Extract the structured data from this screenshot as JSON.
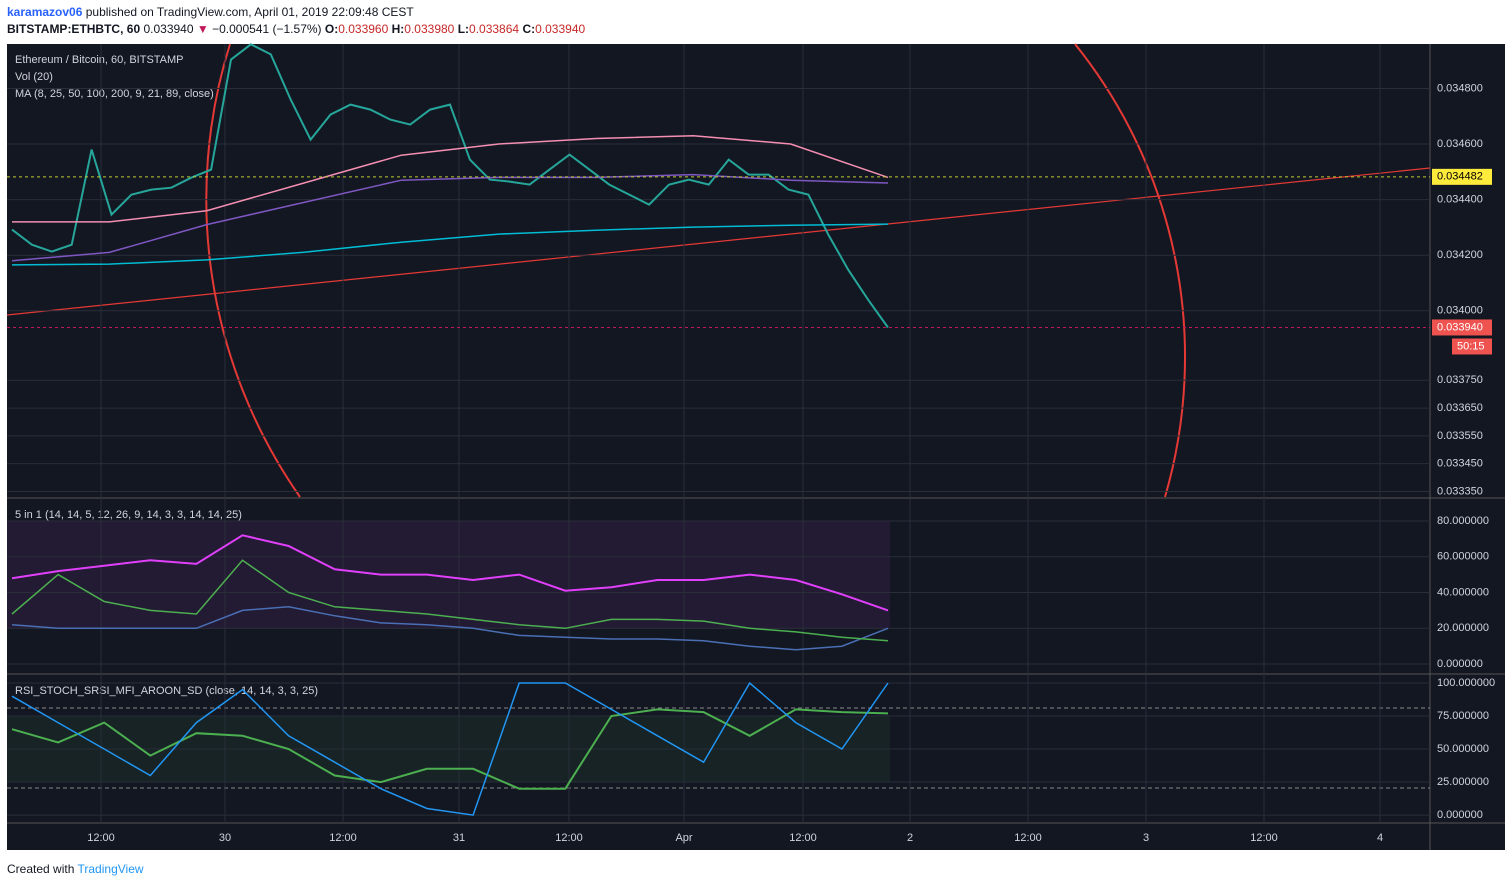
{
  "header": {
    "author": "karamazov06",
    "published": "published on TradingView.com, April 01, 2019 22:09:48 CEST",
    "symbol": "BITSTAMP:ETHBTC, 60",
    "last": "0.033940",
    "arrow": "▼",
    "change": "−0.000541 (−1.57%)",
    "open_label": "O:",
    "open": "0.033960",
    "high_label": "H:",
    "high": "0.033980",
    "low_label": "L:",
    "low": "0.033864",
    "close_label": "C:",
    "close": "0.033940"
  },
  "main": {
    "title": "Ethereum / Bitcoin, 60, BITSTAMP",
    "volume": "Vol (20)",
    "ma": "MA (8, 25, 50, 100, 200, 9, 21, 89, close)",
    "ylim": [
      0.03333,
      0.03496
    ],
    "yticks": [
      {
        "value": 0.0348,
        "label": "0.034800"
      },
      {
        "value": 0.0346,
        "label": "0.034600"
      },
      {
        "value": 0.0344,
        "label": "0.034400"
      },
      {
        "value": 0.0342,
        "label": "0.034200"
      },
      {
        "value": 0.034,
        "label": "0.034000"
      },
      {
        "value": 0.03375,
        "label": "0.033750"
      },
      {
        "value": 0.03365,
        "label": "0.033650"
      },
      {
        "value": 0.03355,
        "label": "0.033550"
      },
      {
        "value": 0.03345,
        "label": "0.033450"
      },
      {
        "value": 0.03335,
        "label": "0.033350"
      }
    ],
    "level": 0.034482,
    "last": {
      "value": 0.03394,
      "label": "0.033940"
    },
    "countdown": "50:15",
    "series": [
      {
        "color": "#26a69a",
        "values": [
          0.034292,
          0.034238,
          0.034213,
          0.034238,
          0.03458,
          0.034346,
          0.034418,
          0.034436,
          0.034443,
          0.034479,
          0.034508,
          0.034904,
          0.034959,
          0.034923,
          0.03476,
          0.034616,
          0.034706,
          0.034742,
          0.034724,
          0.034688,
          0.03467,
          0.034724,
          0.034742,
          0.034544,
          0.034472,
          0.034465,
          0.034454,
          0.034508,
          0.034562,
          0.034508,
          0.034454,
          0.034418,
          0.034382,
          0.034454,
          0.034472,
          0.034454,
          0.034544,
          0.03449,
          0.03449,
          0.034436,
          0.034418,
          0.034274,
          0.034148,
          0.03404,
          0.03394
        ]
      },
      {
        "color": "#00bcd4",
        "values": [
          0.034165,
          0.034168,
          0.034183,
          0.034211,
          0.034247,
          0.034276,
          0.03429,
          0.034301,
          0.034308,
          0.034312
        ]
      },
      {
        "color": "#7e57c2",
        "values": [
          0.03418,
          0.03421,
          0.03431,
          0.03439,
          0.03447,
          0.03448,
          0.03448,
          0.03449,
          0.03447,
          0.03446
        ]
      },
      {
        "color": "#f48fb1",
        "values": [
          0.03432,
          0.03432,
          0.03436,
          0.03446,
          0.03456,
          0.0346,
          0.03462,
          0.03463,
          0.0346,
          0.03448
        ]
      }
    ]
  },
  "pane2": {
    "title": "5 in 1 (14, 14, 5, 12, 26, 9, 14, 3, 3, 14, 14, 25)",
    "ylim": [
      -5,
      92.3
    ],
    "yticks": [
      {
        "value": 80,
        "label": "80.000000"
      },
      {
        "value": 60,
        "label": "60.000000"
      },
      {
        "value": 40,
        "label": "40.000000"
      },
      {
        "value": 20,
        "label": "20.000000"
      },
      {
        "value": 0,
        "label": "0.000000"
      }
    ],
    "series": [
      {
        "color": "#e040fb",
        "values": [
          48,
          52,
          55,
          58,
          56,
          72,
          66,
          53,
          50,
          50,
          47,
          50,
          41,
          43,
          47,
          47,
          50,
          47,
          39,
          30
        ]
      },
      {
        "color": "#4a6fb5",
        "values": [
          22,
          20,
          20,
          20,
          20,
          30,
          32,
          27,
          23,
          22,
          20,
          16,
          15,
          14,
          14,
          13,
          10,
          8,
          10,
          20
        ]
      },
      {
        "color": "#4caf50",
        "values": [
          28,
          50,
          35,
          30,
          28,
          58,
          40,
          32,
          30,
          28,
          25,
          22,
          20,
          25,
          25,
          24,
          20,
          18,
          15,
          13
        ]
      }
    ]
  },
  "pane3": {
    "title": "RSI_STOCH_SRSI_MFI_AROON_SD (close, 14, 14, 3, 3, 25)",
    "ylim": [
      -6,
      105.3
    ],
    "yticks": [
      {
        "value": 100,
        "label": "100.000000"
      },
      {
        "value": 75,
        "label": "75.000000"
      },
      {
        "value": 50,
        "label": "50.000000"
      },
      {
        "value": 25,
        "label": "25.000000"
      },
      {
        "value": 0,
        "label": "0.000000"
      }
    ],
    "series": [
      {
        "color": "#4caf50",
        "values": [
          65,
          55,
          70,
          45,
          62,
          60,
          50,
          30,
          25,
          35,
          35,
          20,
          20,
          75,
          80,
          78,
          60,
          80,
          78,
          77
        ]
      },
      {
        "color": "#2196f3",
        "values": [
          90,
          70,
          50,
          30,
          70,
          95,
          60,
          40,
          20,
          5,
          0,
          100,
          100,
          80,
          60,
          40,
          100,
          70,
          50,
          100
        ]
      }
    ]
  },
  "xaxis": [
    "12:00",
    "30",
    "12:00",
    "31",
    "12:00",
    "Apr",
    "12:00",
    "2",
    "12:00",
    "3",
    "12:00",
    "4"
  ],
  "footer": {
    "created": "Created with",
    "brand": "TradingView"
  }
}
